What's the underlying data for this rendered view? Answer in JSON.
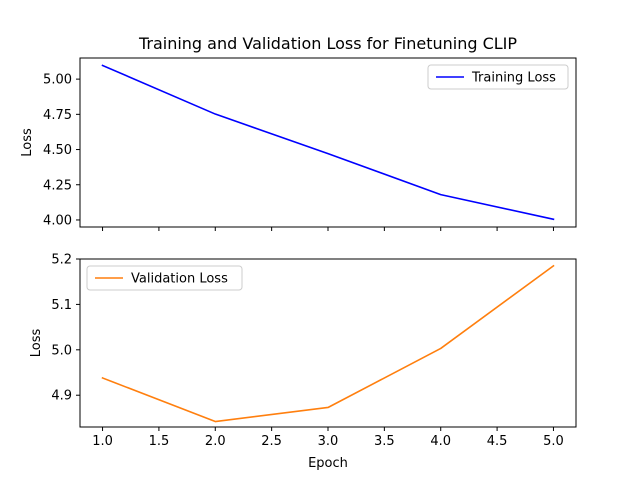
{
  "chart_data": [
    {
      "type": "line",
      "title": "Training and Validation Loss for Finetuning CLIP",
      "xlabel": "",
      "ylabel": "Loss",
      "xlim": [
        0.8,
        5.2
      ],
      "ylim": [
        3.95,
        5.15
      ],
      "x": [
        1.0,
        2.0,
        3.0,
        4.0,
        5.0
      ],
      "xticks": [
        1.0,
        1.5,
        2.0,
        2.5,
        3.0,
        3.5,
        4.0,
        4.5,
        5.0
      ],
      "show_xtick_labels": false,
      "yticks": [
        4.0,
        4.25,
        4.5,
        4.75,
        5.0
      ],
      "yticklabels": [
        "4.00",
        "4.25",
        "4.50",
        "4.75",
        "5.00"
      ],
      "grid": false,
      "legend_position": "upper right",
      "series": [
        {
          "name": "Training Loss",
          "color": "#0000ff",
          "values": [
            5.097,
            4.752,
            4.471,
            4.18,
            4.005
          ]
        }
      ]
    },
    {
      "type": "line",
      "title": "",
      "xlabel": "Epoch",
      "ylabel": "Loss",
      "xlim": [
        0.8,
        5.2
      ],
      "ylim": [
        4.83,
        5.2
      ],
      "x": [
        1.0,
        2.0,
        3.0,
        4.0,
        5.0
      ],
      "xticks": [
        1.0,
        1.5,
        2.0,
        2.5,
        3.0,
        3.5,
        4.0,
        4.5,
        5.0
      ],
      "xticklabels": [
        "1.0",
        "1.5",
        "2.0",
        "2.5",
        "3.0",
        "3.5",
        "4.0",
        "4.5",
        "5.0"
      ],
      "show_xtick_labels": true,
      "yticks": [
        4.9,
        5.0,
        5.1,
        5.2
      ],
      "yticklabels": [
        "4.9",
        "5.0",
        "5.1",
        "5.2"
      ],
      "grid": false,
      "legend_position": "upper left",
      "series": [
        {
          "name": "Validation Loss",
          "color": "#ff7f0e",
          "values": [
            4.938,
            4.842,
            4.873,
            5.003,
            5.185
          ]
        }
      ]
    }
  ]
}
